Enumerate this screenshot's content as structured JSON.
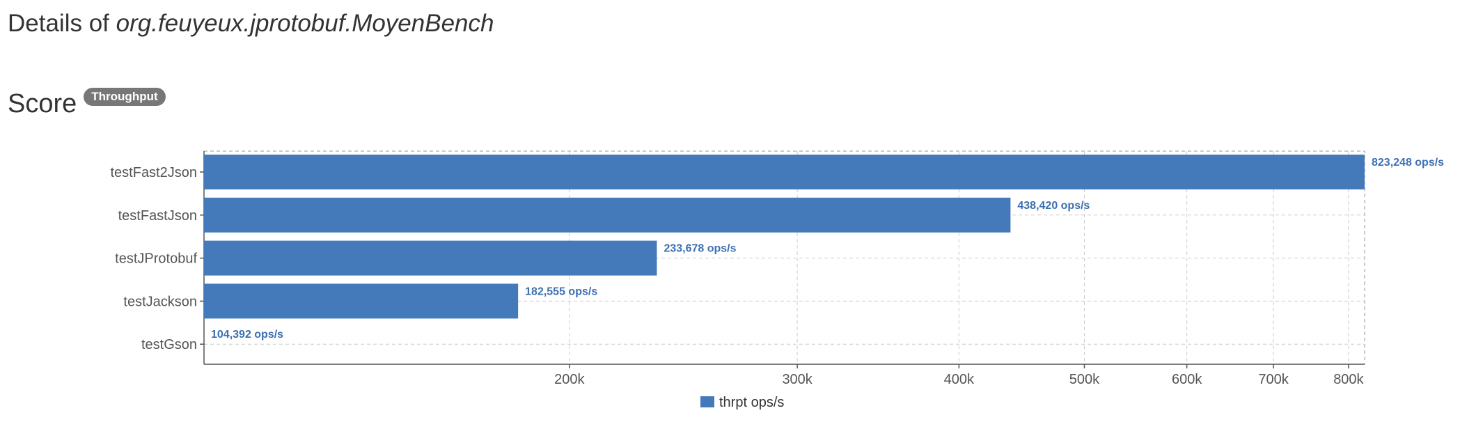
{
  "header": {
    "prefix": "Details of",
    "class_name": "org.feuyeux.jprotobuf.MoyenBench"
  },
  "section": {
    "title": "Score",
    "badge": "Throughput"
  },
  "colors": {
    "bar": "#4479ba",
    "label": "#3d6fb1"
  },
  "chart_data": {
    "type": "bar",
    "orientation": "horizontal",
    "x_scale": "log",
    "categories": [
      "testFast2Json",
      "testFastJson",
      "testJProtobuf",
      "testJackson",
      "testGson"
    ],
    "series": [
      {
        "name": "thrpt ops/s",
        "values": [
          823248,
          438420,
          233678,
          182555,
          104392
        ],
        "labels": [
          "823,248 ops/s",
          "438,420 ops/s",
          "233,678 ops/s",
          "182,555 ops/s",
          "104,392 ops/s"
        ]
      }
    ],
    "xlim": [
      104392,
      823248
    ],
    "x_ticks": [
      200000,
      300000,
      400000,
      500000,
      600000,
      700000,
      800000
    ],
    "x_tick_labels": [
      "200k",
      "300k",
      "400k",
      "500k",
      "600k",
      "700k",
      "800k"
    ],
    "grid": true,
    "legend": "bottom-center"
  }
}
